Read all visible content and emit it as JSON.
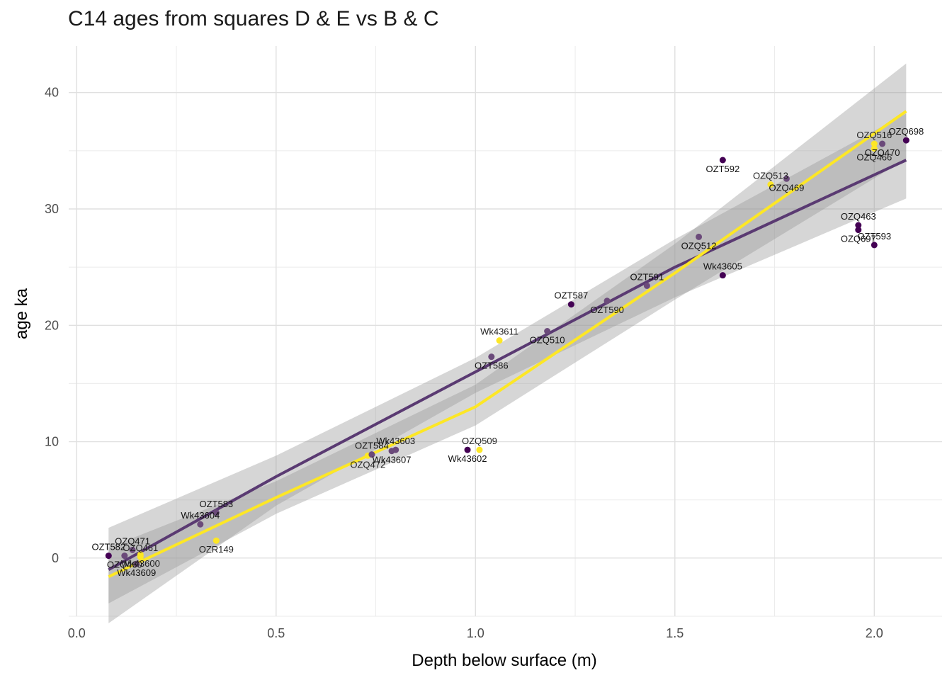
{
  "chart_data": {
    "type": "scatter",
    "title": "C14 ages from squares D & E vs B & C",
    "xlabel": "Depth below surface (m)",
    "ylabel": "age ka",
    "xlim": [
      -0.02,
      2.17
    ],
    "ylim": [
      -5,
      44
    ],
    "x_ticks": [
      {
        "value": 0.0,
        "label": "0.0"
      },
      {
        "value": 0.5,
        "label": "0.5"
      },
      {
        "value": 1.0,
        "label": "1.0"
      },
      {
        "value": 1.5,
        "label": "1.5"
      },
      {
        "value": 2.0,
        "label": "2.0"
      }
    ],
    "y_ticks": [
      {
        "value": 0,
        "label": "0"
      },
      {
        "value": 10,
        "label": "10"
      },
      {
        "value": 20,
        "label": "20"
      },
      {
        "value": 30,
        "label": "30"
      },
      {
        "value": 40,
        "label": "40"
      }
    ],
    "grid": true,
    "colors": {
      "dark": "#440154",
      "mid": "#6b4a7a",
      "yellow": "#fde725",
      "ribbon": "#999999"
    },
    "points": [
      {
        "x": 0.08,
        "y": 0.2,
        "color": "#440154",
        "label": "OZT582"
      },
      {
        "x": 0.12,
        "y": 0.2,
        "color": "#6b4a7a",
        "label": "OZQ460"
      },
      {
        "x": 0.14,
        "y": 0.7,
        "color": "#6b4a7a",
        "label": "OZQ471"
      },
      {
        "x": 0.16,
        "y": 0.3,
        "color": "#fde725",
        "label": "Wk43600"
      },
      {
        "x": 0.16,
        "y": 0.1,
        "color": "#fde725",
        "label": "OZQ461"
      },
      {
        "x": 0.15,
        "y": -0.5,
        "color": "#6b4a7a",
        "label": "Wk43609"
      },
      {
        "x": 0.31,
        "y": 2.9,
        "color": "#6b4a7a",
        "label": "Wk43604"
      },
      {
        "x": 0.35,
        "y": 1.5,
        "color": "#fde725",
        "label": "OZR149"
      },
      {
        "x": 0.35,
        "y": 3.9,
        "color": "#6b4a7a",
        "label": "OZT583"
      },
      {
        "x": 0.73,
        "y": 8.8,
        "color": "#fde725",
        "label": "OZQ472"
      },
      {
        "x": 0.74,
        "y": 8.9,
        "color": "#6b4a7a",
        "label": "OZT584"
      },
      {
        "x": 0.79,
        "y": 9.2,
        "color": "#6b4a7a",
        "label": "Wk43607"
      },
      {
        "x": 0.8,
        "y": 9.3,
        "color": "#6b4a7a",
        "label": "Wk43603"
      },
      {
        "x": 0.98,
        "y": 9.3,
        "color": "#440154",
        "label": "Wk43602"
      },
      {
        "x": 1.01,
        "y": 9.3,
        "color": "#fde725",
        "label": "OZQ509"
      },
      {
        "x": 1.04,
        "y": 17.3,
        "color": "#6b4a7a",
        "label": "OZT586"
      },
      {
        "x": 1.06,
        "y": 18.7,
        "color": "#fde725",
        "label": "Wk43611"
      },
      {
        "x": 1.18,
        "y": 19.5,
        "color": "#6b4a7a",
        "label": "OZQ510"
      },
      {
        "x": 1.24,
        "y": 21.8,
        "color": "#440154",
        "label": "OZT587"
      },
      {
        "x": 1.33,
        "y": 22.1,
        "color": "#6b4a7a",
        "label": "OZT590"
      },
      {
        "x": 1.43,
        "y": 23.4,
        "color": "#6b4a7a",
        "label": "OZT591"
      },
      {
        "x": 1.56,
        "y": 27.6,
        "color": "#6b4a7a",
        "label": "OZQ512"
      },
      {
        "x": 1.62,
        "y": 24.3,
        "color": "#440154",
        "label": "Wk43605"
      },
      {
        "x": 1.62,
        "y": 34.2,
        "color": "#440154",
        "label": "OZT592"
      },
      {
        "x": 1.74,
        "y": 32.1,
        "color": "#fde725",
        "label": "OZQ513"
      },
      {
        "x": 1.78,
        "y": 32.6,
        "color": "#6b4a7a",
        "label": "OZQ469"
      },
      {
        "x": 1.96,
        "y": 28.6,
        "color": "#440154",
        "label": "OZQ463"
      },
      {
        "x": 1.96,
        "y": 28.2,
        "color": "#440154",
        "label": "OZQ697"
      },
      {
        "x": 2.0,
        "y": 26.9,
        "color": "#440154",
        "label": "OZT593"
      },
      {
        "x": 2.0,
        "y": 35.2,
        "color": "#fde725",
        "label": "OZQ466"
      },
      {
        "x": 2.0,
        "y": 35.6,
        "color": "#fde725",
        "label": "OZQ516"
      },
      {
        "x": 2.02,
        "y": 35.6,
        "color": "#6b4a7a",
        "label": "OZQ470"
      },
      {
        "x": 2.08,
        "y": 35.9,
        "color": "#440154",
        "label": "OZQ698"
      }
    ],
    "fits": [
      {
        "color": "#5a3a72",
        "x": [
          0.08,
          0.5,
          1.0,
          1.5,
          2.08
        ],
        "y": [
          -1.0,
          7.0,
          16.0,
          25.0,
          34.2
        ],
        "lower": [
          -5.6,
          4.5,
          14.2,
          22.4,
          30.9
        ],
        "upper": [
          2.6,
          8.8,
          17.2,
          27.4,
          38.2
        ]
      },
      {
        "color": "#fde725",
        "x": [
          0.08,
          0.5,
          1.0,
          1.5,
          2.08
        ],
        "y": [
          -1.6,
          5.2,
          13.0,
          24.5,
          38.4
        ],
        "lower": [
          -3.9,
          3.8,
          11.4,
          22.2,
          34.3
        ],
        "upper": [
          0.9,
          6.6,
          14.9,
          27.0,
          42.5
        ]
      }
    ]
  }
}
